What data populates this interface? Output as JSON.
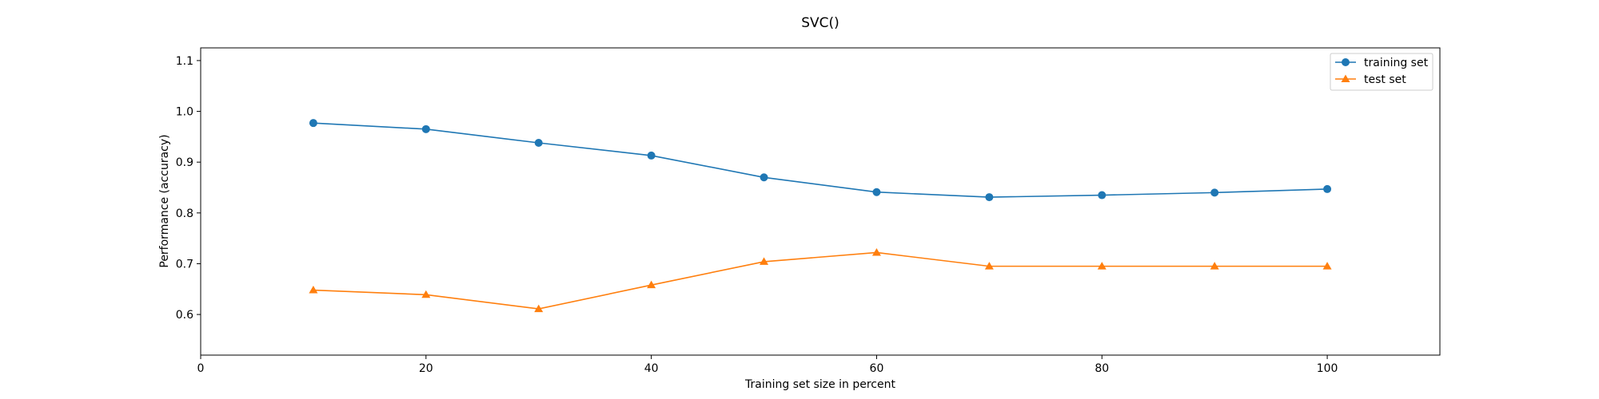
{
  "chart_data": {
    "type": "line",
    "title": "SVC()",
    "xlabel": "Training set size in percent",
    "ylabel": "Performance (accuracy)",
    "xlim": [
      0,
      110
    ],
    "ylim": [
      0.52,
      1.125
    ],
    "xticks": [
      0,
      20,
      40,
      60,
      80,
      100
    ],
    "yticks": [
      0.6,
      0.7,
      0.8,
      0.9,
      1.0,
      1.1
    ],
    "ytick_labels": [
      "0.6",
      "0.7",
      "0.8",
      "0.9",
      "1.0",
      "1.1"
    ],
    "x": [
      10,
      20,
      30,
      40,
      50,
      60,
      70,
      80,
      90,
      100
    ],
    "grid": false,
    "legend_position": "top-right",
    "series": [
      {
        "name": "training set",
        "color": "#1f77b4",
        "marker": "circle",
        "values": [
          0.977,
          0.965,
          0.938,
          0.913,
          0.87,
          0.841,
          0.831,
          0.835,
          0.84,
          0.847
        ]
      },
      {
        "name": "test set",
        "color": "#ff7f0e",
        "marker": "triangle",
        "values": [
          0.648,
          0.639,
          0.611,
          0.658,
          0.704,
          0.722,
          0.695,
          0.695,
          0.695,
          0.695
        ]
      }
    ]
  }
}
